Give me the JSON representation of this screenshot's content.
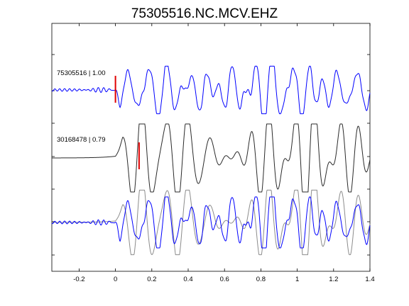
{
  "chart_data": {
    "type": "line",
    "title": "75305516.NC.MCV.EHZ",
    "xlabel": "",
    "ylabel": "",
    "xlim": [
      -0.35,
      1.4
    ],
    "xticks": [
      -0.2,
      0,
      0.2,
      0.4,
      0.6,
      0.8,
      1,
      1.2,
      1.4
    ],
    "xtick_labels": [
      "-0.2",
      "0",
      "0.2",
      "0.4",
      "0.6",
      "0.8",
      "1",
      "1.2",
      "1.4"
    ],
    "grid": false,
    "colors": {
      "reference": "#0000ff",
      "match": "#2a2a2a",
      "overlay_match": "#8c8c8c",
      "pick": "#e00000"
    },
    "traces": [
      {
        "id": "reference",
        "label": "75305516 | 1.00",
        "color": "#0000ff",
        "pick_time": 0.0
      },
      {
        "id": "match",
        "label": "30168478 | 0.79",
        "color": "#2a2a2a",
        "pick_time": 0.13
      },
      {
        "id": "overlay",
        "label": "",
        "color": "#0000ff"
      }
    ]
  }
}
